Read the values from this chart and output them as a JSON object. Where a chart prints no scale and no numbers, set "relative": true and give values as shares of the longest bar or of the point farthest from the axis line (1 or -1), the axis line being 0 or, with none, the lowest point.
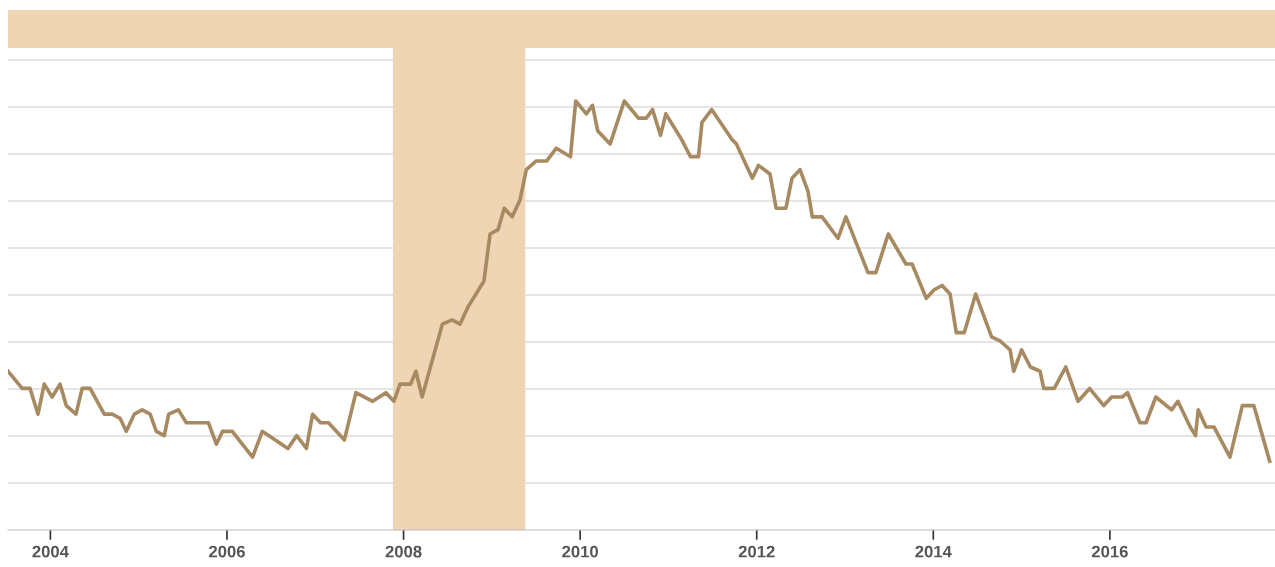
{
  "chart_data": {
    "type": "line",
    "relative": true,
    "grid": "y",
    "xlim": [
      2003.52,
      2017.87
    ],
    "xticks": [
      2004,
      2006,
      2008,
      2010,
      2012,
      2014,
      2016
    ],
    "bands": [
      {
        "axis": "x",
        "from": 2007.88,
        "to": 2009.38,
        "color": "#f0d5b4"
      }
    ],
    "series": [
      {
        "color": "#a88a62",
        "x": [
          2003.52,
          2003.68,
          2003.77,
          2003.86,
          2003.93,
          2004.02,
          2004.11,
          2004.18,
          2004.29,
          2004.36,
          2004.45,
          2004.61,
          2004.7,
          2004.79,
          2004.86,
          2004.95,
          2005.04,
          2005.13,
          2005.2,
          2005.29,
          2005.34,
          2005.45,
          2005.54,
          2005.79,
          2005.88,
          2005.95,
          2006.06,
          2006.29,
          2006.4,
          2006.69,
          2006.79,
          2006.9,
          2006.97,
          2007.06,
          2007.15,
          2007.33,
          2007.46,
          2007.65,
          2007.8,
          2007.89,
          2007.96,
          2008.08,
          2008.14,
          2008.21,
          2008.44,
          2008.55,
          2008.64,
          2008.73,
          2008.91,
          2008.98,
          2009.07,
          2009.14,
          2009.23,
          2009.32,
          2009.39,
          2009.5,
          2009.62,
          2009.73,
          2009.89,
          2009.95,
          2010.07,
          2010.14,
          2010.2,
          2010.34,
          2010.5,
          2010.66,
          2010.75,
          2010.82,
          2010.91,
          2010.97,
          2011.06,
          2011.15,
          2011.25,
          2011.34,
          2011.38,
          2011.49,
          2011.72,
          2011.77,
          2011.95,
          2012.02,
          2012.15,
          2012.22,
          2012.33,
          2012.4,
          2012.49,
          2012.58,
          2012.63,
          2012.74,
          2012.92,
          2013.01,
          2013.26,
          2013.35,
          2013.49,
          2013.69,
          2013.76,
          2013.92,
          2014.01,
          2014.1,
          2014.19,
          2014.26,
          2014.35,
          2014.48,
          2014.66,
          2014.76,
          2014.87,
          2014.91,
          2015.0,
          2015.1,
          2015.21,
          2015.25,
          2015.37,
          2015.5,
          2015.64,
          2015.77,
          2015.93,
          2016.02,
          2016.14,
          2016.2,
          2016.34,
          2016.41,
          2016.52,
          2016.7,
          2016.77,
          2016.91,
          2016.97,
          2017.0,
          2017.09,
          2017.18,
          2017.36,
          2017.5,
          2017.63,
          2017.81
        ],
        "values": [
          0.37,
          0.33,
          0.33,
          0.27,
          0.34,
          0.31,
          0.34,
          0.29,
          0.27,
          0.33,
          0.33,
          0.27,
          0.27,
          0.26,
          0.23,
          0.27,
          0.28,
          0.27,
          0.23,
          0.22,
          0.27,
          0.28,
          0.25,
          0.25,
          0.2,
          0.23,
          0.23,
          0.17,
          0.23,
          0.19,
          0.22,
          0.19,
          0.27,
          0.25,
          0.25,
          0.21,
          0.32,
          0.3,
          0.32,
          0.3,
          0.34,
          0.34,
          0.37,
          0.31,
          0.48,
          0.49,
          0.48,
          0.52,
          0.58,
          0.69,
          0.7,
          0.75,
          0.73,
          0.77,
          0.84,
          0.86,
          0.86,
          0.89,
          0.87,
          1.0,
          0.97,
          0.99,
          0.93,
          0.9,
          1.0,
          0.96,
          0.96,
          0.98,
          0.92,
          0.97,
          0.94,
          0.91,
          0.87,
          0.87,
          0.95,
          0.98,
          0.91,
          0.9,
          0.82,
          0.85,
          0.83,
          0.75,
          0.75,
          0.82,
          0.84,
          0.79,
          0.73,
          0.73,
          0.68,
          0.73,
          0.6,
          0.6,
          0.69,
          0.62,
          0.62,
          0.54,
          0.56,
          0.57,
          0.55,
          0.46,
          0.46,
          0.55,
          0.45,
          0.44,
          0.42,
          0.37,
          0.42,
          0.38,
          0.37,
          0.33,
          0.33,
          0.38,
          0.3,
          0.33,
          0.29,
          0.31,
          0.31,
          0.32,
          0.25,
          0.25,
          0.31,
          0.28,
          0.3,
          0.24,
          0.22,
          0.28,
          0.24,
          0.24,
          0.17,
          0.29,
          0.29,
          0.16
        ]
      }
    ]
  }
}
